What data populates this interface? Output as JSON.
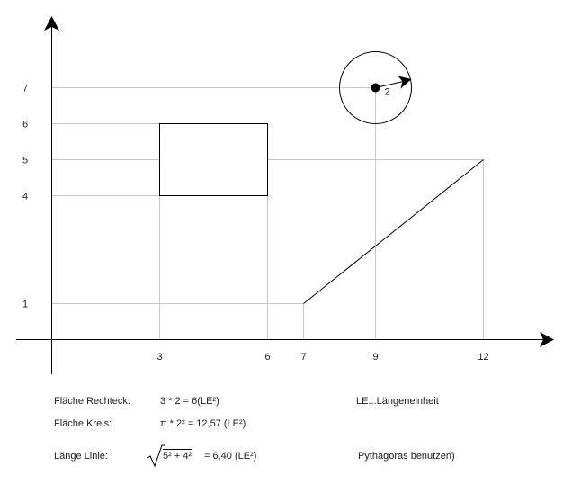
{
  "diagram": {
    "x_ticks": [
      "3",
      "6",
      "7",
      "9",
      "12"
    ],
    "y_ticks": [
      "1",
      "4",
      "5",
      "6",
      "7"
    ],
    "x_values": [
      3,
      6,
      7,
      9,
      12
    ],
    "y_values": [
      1,
      4,
      5,
      6,
      7
    ],
    "rectangle": {
      "x1": 3,
      "x2": 6,
      "y1": 4,
      "y2": 6
    },
    "circle": {
      "center": [
        9,
        7
      ],
      "radius": 2,
      "radius_label": "2"
    },
    "line": {
      "from": [
        7,
        1
      ],
      "to": [
        12,
        5
      ]
    }
  },
  "notes": {
    "rect_label": "Fläche Rechteck:",
    "rect_formula": "3 * 2 = 6(LE²)",
    "circle_label": "Fläche Kreis:",
    "circle_formula": "π * 2² = 12,57 (LE²)",
    "line_label": "Länge Linie:",
    "line_radicand": "5² + 4²",
    "line_result": "= 6,40 (LE²)",
    "le_note": "LE...Längeneinheit",
    "pyth_note": "Pythagoras benutzen)"
  },
  "colors": {
    "axis": "#000000",
    "guide": "#c8c8c8",
    "shape": "#000000"
  }
}
